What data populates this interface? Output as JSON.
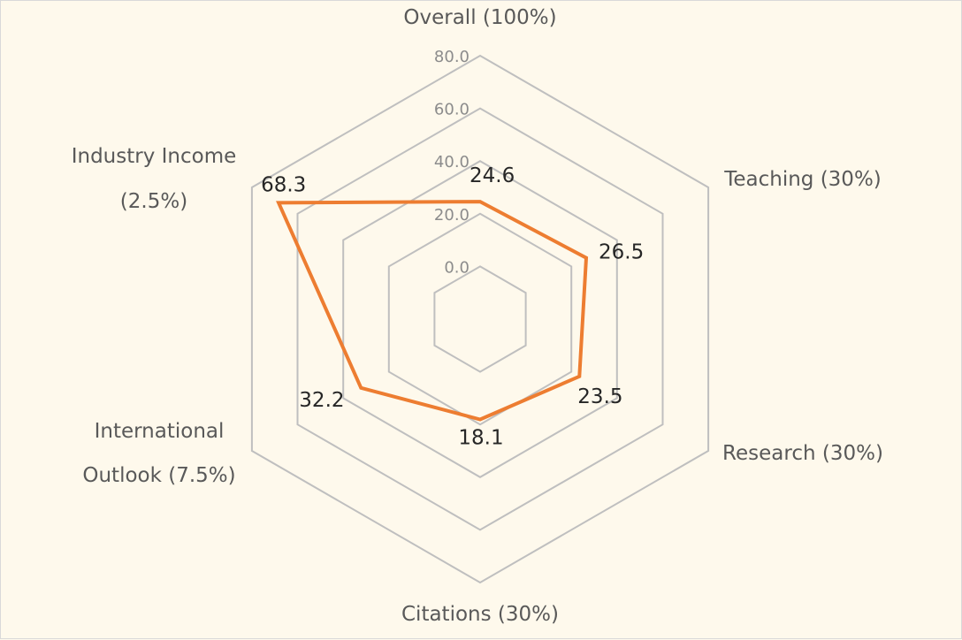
{
  "chart_data": {
    "type": "radar",
    "title": "",
    "axes": [
      {
        "label": "Overall (100%)"
      },
      {
        "label": "Teaching (30%)"
      },
      {
        "label": "Research (30%)"
      },
      {
        "label": "Citations (30%)"
      },
      {
        "label": "International",
        "label2": "Outlook (7.5%)"
      },
      {
        "label": "Industry Income",
        "label2": "(2.5%)"
      }
    ],
    "values": [
      24.6,
      26.5,
      23.5,
      18.1,
      32.2,
      68.3
    ],
    "value_labels": [
      "24.6",
      "26.5",
      "23.5",
      "18.1",
      "32.2",
      "68.3"
    ],
    "ticks": [
      "0.0",
      "20.0",
      "40.0",
      "60.0",
      "80.0"
    ],
    "tick_values": [
      0,
      20,
      40,
      60,
      80
    ],
    "rlim": [
      -20,
      80
    ],
    "grid": true,
    "legend": "none",
    "colors": {
      "series": "#ed7d31",
      "grid": "#bfbfbf",
      "background": "#fef9ec"
    }
  }
}
